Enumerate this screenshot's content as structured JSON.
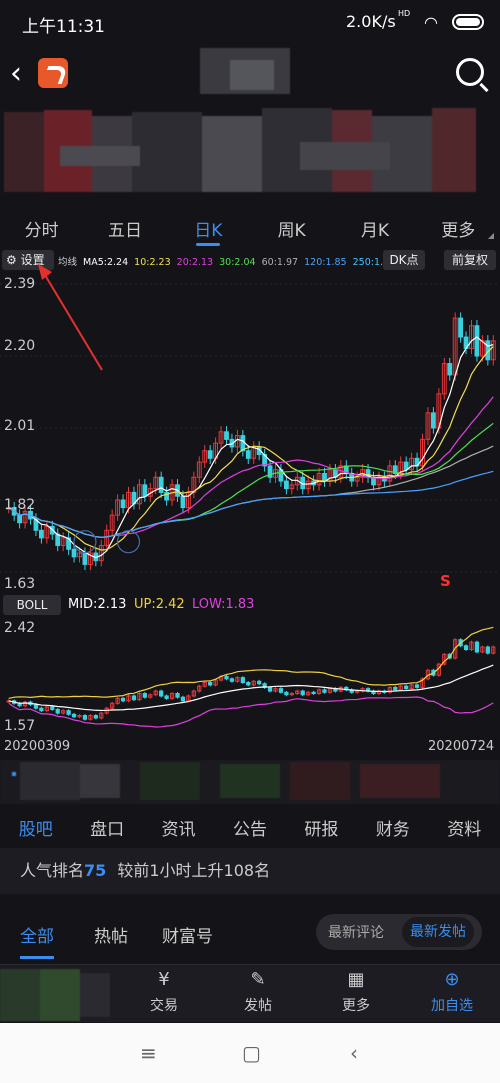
{
  "status": {
    "time": "上午11:31",
    "speed": "2.0K/s",
    "hd": "HD"
  },
  "period_tabs": [
    {
      "label": "分时"
    },
    {
      "label": "五日"
    },
    {
      "label": "日K"
    },
    {
      "label": "周K"
    },
    {
      "label": "月K"
    },
    {
      "label": "更多"
    }
  ],
  "active_period": "日K",
  "toolbar_ma": {
    "settings": "设置",
    "ma_label": "均线",
    "ma": [
      {
        "text": "MA5:2.24",
        "color": "#ffffff"
      },
      {
        "text": "10:2.23",
        "color": "#f0e050"
      },
      {
        "text": "20:2.13",
        "color": "#e040e0"
      },
      {
        "text": "30:2.04",
        "color": "#50e050"
      },
      {
        "text": "60:1.97",
        "color": "#b0b0b0"
      },
      {
        "text": "120:1.85",
        "color": "#4aa0ff"
      },
      {
        "text": "250:1.81",
        "color": "#40c0ff"
      }
    ],
    "dk": "DK点",
    "adjust": "前复权"
  },
  "kline_axis": {
    "labels": [
      "2.39",
      "2.20",
      "2.01",
      "1.82",
      "1.63"
    ]
  },
  "signal": "S",
  "boll": {
    "button": "BOLL",
    "mid": "MID:2.13",
    "up": "UP:2.42",
    "low": "LOW:1.83",
    "axis": [
      "2.42",
      "1.57"
    ]
  },
  "dates": {
    "start": "20200309",
    "end": "20200724"
  },
  "section_tabs": [
    {
      "label": "股吧"
    },
    {
      "label": "盘口"
    },
    {
      "label": "资讯"
    },
    {
      "label": "公告"
    },
    {
      "label": "研报"
    },
    {
      "label": "财务"
    },
    {
      "label": "资料"
    }
  ],
  "popularity": {
    "prefix": "人气排名",
    "rank": "75",
    "suffix": "较前1小时上升108名"
  },
  "feed_tabs": {
    "all": "全部",
    "hot": "热帖",
    "wealth": "财富号",
    "latest_comment": "最新评论",
    "latest_post": "最新发帖"
  },
  "bottom_bar": {
    "trade": "交易",
    "post": "发帖",
    "more": "更多",
    "add": "加自选"
  },
  "chart_data": {
    "type": "candlestick",
    "x_range": [
      "20200309",
      "20200724"
    ],
    "y_ticks": [
      2.39,
      2.2,
      2.01,
      1.82,
      1.63
    ],
    "ma_values": {
      "MA5": 2.24,
      "MA10": 2.23,
      "MA20": 2.13,
      "MA30": 2.04,
      "MA60": 1.97,
      "MA120": 1.85,
      "MA250": 1.81
    },
    "closes": [
      1.8,
      1.78,
      1.76,
      1.79,
      1.77,
      1.74,
      1.72,
      1.75,
      1.73,
      1.7,
      1.72,
      1.69,
      1.67,
      1.68,
      1.65,
      1.68,
      1.66,
      1.7,
      1.74,
      1.78,
      1.82,
      1.8,
      1.84,
      1.81,
      1.86,
      1.83,
      1.85,
      1.88,
      1.84,
      1.82,
      1.86,
      1.83,
      1.8,
      1.84,
      1.88,
      1.92,
      1.95,
      1.93,
      1.97,
      2.0,
      1.98,
      1.96,
      1.99,
      1.95,
      1.93,
      1.96,
      1.94,
      1.91,
      1.88,
      1.9,
      1.87,
      1.85,
      1.86,
      1.88,
      1.85,
      1.87,
      1.86,
      1.89,
      1.87,
      1.9,
      1.88,
      1.91,
      1.89,
      1.87,
      1.88,
      1.9,
      1.88,
      1.86,
      1.88,
      1.87,
      1.91,
      1.89,
      1.92,
      1.9,
      1.93,
      1.91,
      1.98,
      2.05,
      2.01,
      2.1,
      2.18,
      2.15,
      2.3,
      2.25,
      2.22,
      2.28,
      2.2,
      2.24,
      2.19,
      2.24
    ],
    "boll": {
      "mid": 2.13,
      "up": 2.42,
      "low": 1.83,
      "ylim": [
        1.57,
        2.42
      ]
    }
  }
}
